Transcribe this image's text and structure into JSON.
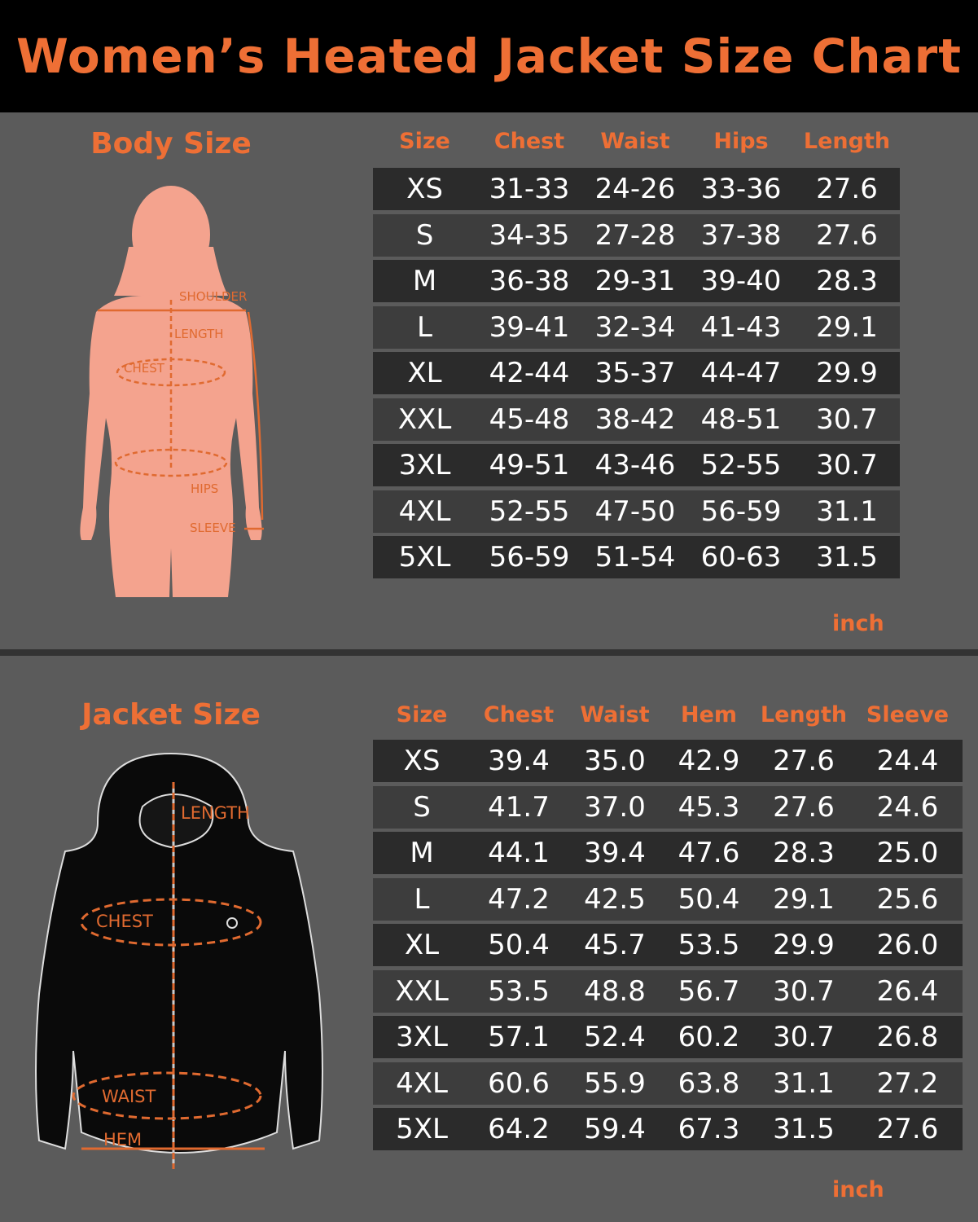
{
  "title": "Women’s Heated Jacket Size Chart",
  "colors": {
    "accent": "#ee6f35",
    "row_dark": "#2b2b2b",
    "row_light": "#3d3d3d",
    "background": "#5b5b5b",
    "body_figure": "#f4a38e"
  },
  "body": {
    "heading": "Body Size",
    "figure_labels": {
      "shoulder": "SHOULDER",
      "length": "LENGTH",
      "chest": "CHEST",
      "hips": "HIPS",
      "sleeve": "SLEEVE"
    },
    "columns": [
      "Size",
      "Chest",
      "Waist",
      "Hips",
      "Length"
    ],
    "rows": [
      [
        "XS",
        "31-33",
        "24-26",
        "33-36",
        "27.6"
      ],
      [
        "S",
        "34-35",
        "27-28",
        "37-38",
        "27.6"
      ],
      [
        "M",
        "36-38",
        "29-31",
        "39-40",
        "28.3"
      ],
      [
        "L",
        "39-41",
        "32-34",
        "41-43",
        "29.1"
      ],
      [
        "XL",
        "42-44",
        "35-37",
        "44-47",
        "29.9"
      ],
      [
        "XXL",
        "45-48",
        "38-42",
        "48-51",
        "30.7"
      ],
      [
        "3XL",
        "49-51",
        "43-46",
        "52-55",
        "30.7"
      ],
      [
        "4XL",
        "52-55",
        "47-50",
        "56-59",
        "31.1"
      ],
      [
        "5XL",
        "56-59",
        "51-54",
        "60-63",
        "31.5"
      ]
    ],
    "unit": "inch"
  },
  "jacket": {
    "heading": "Jacket Size",
    "figure_labels": {
      "length": "LENGTH",
      "chest": "CHEST",
      "waist": "WAIST",
      "hem": "HEM"
    },
    "columns": [
      "Size",
      "Chest",
      "Waist",
      "Hem",
      "Length",
      "Sleeve"
    ],
    "rows": [
      [
        "XS",
        "39.4",
        "35.0",
        "42.9",
        "27.6",
        "24.4"
      ],
      [
        "S",
        "41.7",
        "37.0",
        "45.3",
        "27.6",
        "24.6"
      ],
      [
        "M",
        "44.1",
        "39.4",
        "47.6",
        "28.3",
        "25.0"
      ],
      [
        "L",
        "47.2",
        "42.5",
        "50.4",
        "29.1",
        "25.6"
      ],
      [
        "XL",
        "50.4",
        "45.7",
        "53.5",
        "29.9",
        "26.0"
      ],
      [
        "XXL",
        "53.5",
        "48.8",
        "56.7",
        "30.7",
        "26.4"
      ],
      [
        "3XL",
        "57.1",
        "52.4",
        "60.2",
        "30.7",
        "26.8"
      ],
      [
        "4XL",
        "60.6",
        "55.9",
        "63.8",
        "31.1",
        "27.2"
      ],
      [
        "5XL",
        "64.2",
        "59.4",
        "67.3",
        "31.5",
        "27.6"
      ]
    ],
    "unit": "inch"
  }
}
